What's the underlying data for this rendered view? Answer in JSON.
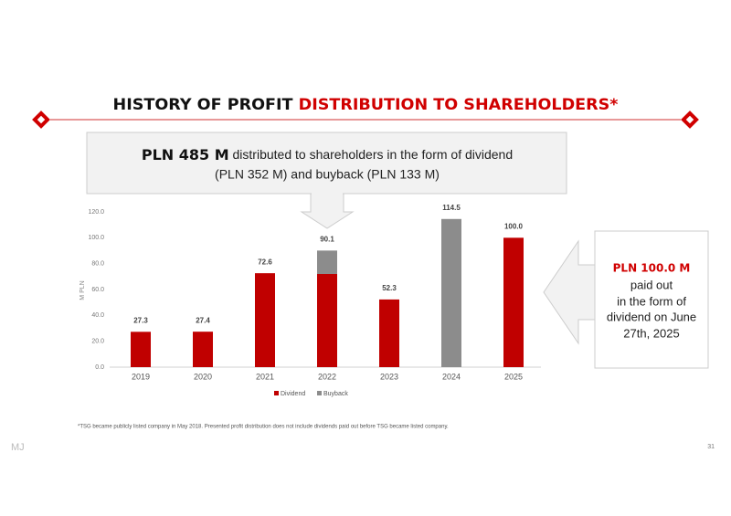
{
  "header": {
    "title_black": "HISTORY OF PROFIT ",
    "title_red": "DISTRIBUTION TO SHAREHOLDERS*"
  },
  "summary": {
    "highlight": "PLN 485 M",
    "line1": " distributed to shareholders in the form of dividend",
    "line2": "(PLN 352 M) and buyback (PLN 133 M)"
  },
  "callout": {
    "highlight": "PLN 100.0 M",
    "lines": [
      "paid out",
      "in the form of",
      "dividend on June",
      "27th, 2025"
    ]
  },
  "chart_data": {
    "type": "stacked_bar",
    "y_label": "M PLN",
    "categories": [
      "2019",
      "2020",
      "2021",
      "2022",
      "2023",
      "2024",
      "2025"
    ],
    "series": [
      {
        "name": "Dividend",
        "color": "#c00000",
        "values": [
          27.3,
          27.4,
          72.6,
          72.0,
          52.3,
          null,
          100.0
        ]
      },
      {
        "name": "Buyback",
        "color": "#8c8c8c",
        "values": [
          null,
          null,
          null,
          18.1,
          null,
          114.5,
          null
        ]
      }
    ],
    "total_labels": [
      "27.3",
      "27.4",
      "72.6",
      "90.1",
      "52.3",
      "114.5",
      "100.0"
    ],
    "ylim": [
      0,
      120
    ],
    "yticks": [
      {
        "value": 0,
        "label": "0.0"
      },
      {
        "value": 20,
        "label": "20.0"
      },
      {
        "value": 40,
        "label": "40.0"
      },
      {
        "value": 60,
        "label": "60.0"
      },
      {
        "value": 80,
        "label": "80.0"
      },
      {
        "value": 100,
        "label": "100.0"
      },
      {
        "value": 120,
        "label": "120.0"
      }
    ],
    "grid": false,
    "legend": "bottom"
  },
  "footnote": "*TSG became publicly listed company in May 2018. Presented profit distribution does not include dividends paid out before TSG became listed company.",
  "logo": "MJ",
  "page_number": "31"
}
